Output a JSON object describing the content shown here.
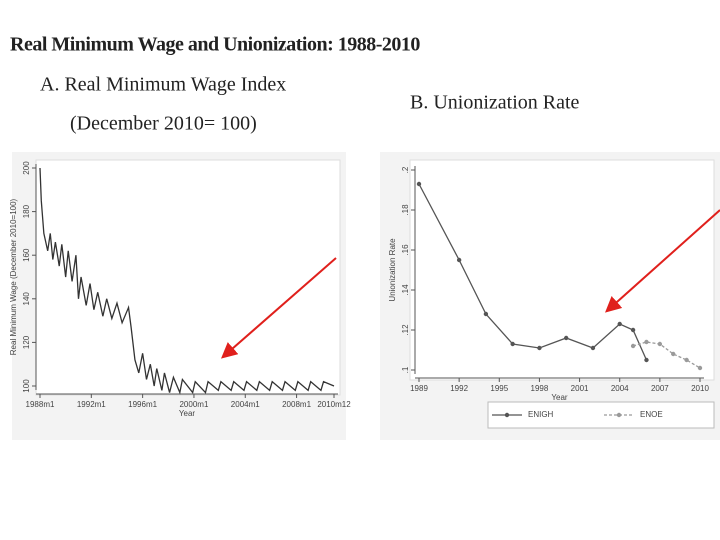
{
  "title": "Real Minimum Wage and Unionization: 1988-2010",
  "chart_data": [
    {
      "type": "line",
      "title": "A. Real Minimum Wage Index",
      "subtitle": "(December 2010= 100)",
      "y_label": "Real Minimum Wage (December 2010=100)",
      "x_label": "Year",
      "xlim": [
        1988,
        2010.917
      ],
      "xticks": [
        {
          "value": 1988,
          "label": "1988m1"
        },
        {
          "value": 1992,
          "label": "1992m1"
        },
        {
          "value": 1996,
          "label": "1996m1"
        },
        {
          "value": 2000,
          "label": "2000m1"
        },
        {
          "value": 2004,
          "label": "2004m1"
        },
        {
          "value": 2008,
          "label": "2008m1"
        },
        {
          "value": 2010.917,
          "label": "2010m12"
        }
      ],
      "ylim": [
        100,
        200
      ],
      "yticks": [
        100,
        120,
        140,
        160,
        180,
        200
      ],
      "x": [
        1988.0,
        1988.1,
        1988.3,
        1988.6,
        1988.8,
        1989.0,
        1989.2,
        1989.5,
        1989.7,
        1990.0,
        1990.2,
        1990.5,
        1990.8,
        1991.0,
        1991.2,
        1991.6,
        1991.9,
        1992.2,
        1992.5,
        1992.9,
        1993.2,
        1993.6,
        1994.0,
        1994.4,
        1994.9,
        1995.1,
        1995.4,
        1995.7,
        1996.0,
        1996.3,
        1996.6,
        1996.9,
        1997.1,
        1997.5,
        1997.7,
        1998.1,
        1998.4,
        1998.9,
        1999.1,
        1999.9,
        2000.1,
        2000.9,
        2001.1,
        2001.9,
        2002.1,
        2002.9,
        2003.1,
        2003.9,
        2004.1,
        2004.9,
        2005.1,
        2005.9,
        2006.1,
        2006.9,
        2007.1,
        2007.9,
        2008.1,
        2008.9,
        2009.1,
        2009.9,
        2010.1,
        2010.917
      ],
      "series": [
        {
          "color": "#333333",
          "style": "solid",
          "values": [
            200,
            185,
            170,
            162,
            170,
            158,
            166,
            155,
            165,
            150,
            162,
            148,
            160,
            140,
            150,
            137,
            147,
            135,
            143,
            132,
            140,
            131,
            138,
            129,
            136,
            127,
            112,
            106,
            115,
            103,
            110,
            100,
            108,
            98,
            106,
            97,
            104,
            97,
            103,
            97,
            102,
            97,
            102,
            98,
            102,
            98,
            102,
            98,
            102,
            98,
            102,
            98,
            102,
            98,
            102,
            98,
            102,
            98,
            102,
            98,
            102,
            100
          ]
        }
      ]
    },
    {
      "type": "line",
      "title": "B. Unionization Rate",
      "y_label": "Unionization Rate",
      "x_label": "Year",
      "xlim": [
        1989,
        2010
      ],
      "xticks": [
        1989,
        1992,
        1995,
        1998,
        2001,
        2004,
        2007,
        2010
      ],
      "ylim": [
        0.1,
        0.2
      ],
      "yticks": [
        {
          "value": 0.1,
          "label": ".1"
        },
        {
          "value": 0.12,
          "label": ".12"
        },
        {
          "value": 0.14,
          "label": ".14"
        },
        {
          "value": 0.16,
          "label": ".16"
        },
        {
          "value": 0.18,
          "label": ".18"
        },
        {
          "value": 0.2,
          "label": ".2"
        }
      ],
      "x": [
        1989,
        1992,
        1994,
        1996,
        1998,
        2000,
        2002,
        2004,
        2005,
        2006,
        2007,
        2008,
        2009,
        2010
      ],
      "series": [
        {
          "name": "ENIGH",
          "color": "#555555",
          "style": "solid",
          "values": [
            0.193,
            0.155,
            0.128,
            0.113,
            0.111,
            0.116,
            0.111,
            0.123,
            0.12,
            0.105,
            null,
            null,
            null,
            null
          ]
        },
        {
          "name": "ENOE",
          "color": "#9a9a9a",
          "style": "dash",
          "values": [
            null,
            null,
            null,
            null,
            null,
            null,
            null,
            null,
            0.112,
            0.114,
            0.113,
            0.108,
            0.105,
            0.101
          ]
        }
      ]
    }
  ]
}
